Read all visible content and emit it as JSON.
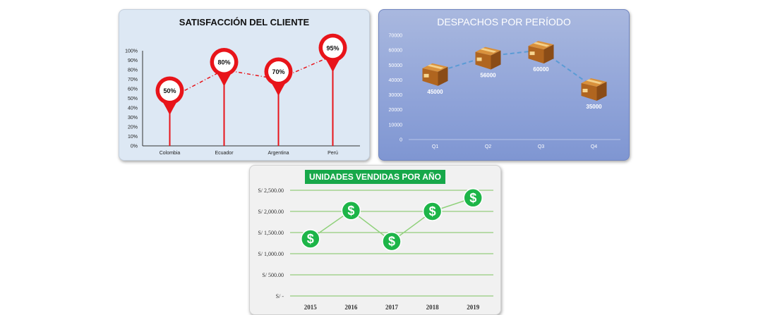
{
  "charts": {
    "satisfaction": {
      "title": "SATISFACCIÓN DEL CLIENTE"
    },
    "shipments": {
      "title": "DESPACHOS POR PERÍODO"
    },
    "units": {
      "title": "UNIDADES VENDIDAS POR AÑO"
    }
  },
  "chart_data": [
    {
      "type": "line",
      "title": "SATISFACCIÓN DEL CLIENTE",
      "categories": [
        "Colombia",
        "Ecuador",
        "Argentina",
        "Perú"
      ],
      "values": [
        50,
        80,
        70,
        95
      ],
      "value_labels": [
        "50%",
        "80%",
        "70%",
        "95%"
      ],
      "yticks": [
        "0%",
        "10%",
        "20%",
        "30%",
        "40%",
        "50%",
        "60%",
        "70%",
        "80%",
        "90%",
        "100%"
      ],
      "ylim": [
        0,
        100
      ],
      "color": "#e8141a",
      "marker": "map-pin"
    },
    {
      "type": "line",
      "title": "DESPACHOS POR PERÍODO",
      "categories": [
        "Q1",
        "Q2",
        "Q3",
        "Q4"
      ],
      "values": [
        45000,
        56000,
        60000,
        35000
      ],
      "value_labels": [
        "45000",
        "56000",
        "60000",
        "35000"
      ],
      "yticks": [
        "0",
        "10000",
        "20000",
        "30000",
        "40000",
        "50000",
        "60000",
        "70000"
      ],
      "ylim": [
        0,
        70000
      ],
      "color": "#5b9bd5",
      "marker": "box-icon"
    },
    {
      "type": "line",
      "title": "UNIDADES VENDIDAS POR AÑO",
      "categories": [
        "2015",
        "2016",
        "2017",
        "2018",
        "2019"
      ],
      "values": [
        1350,
        2020,
        1290,
        2000,
        2320
      ],
      "yticks": [
        "S/ -",
        "S/ 500.00",
        "S/ 1,000.00",
        "S/ 1,500.00",
        "S/ 2,000.00",
        "S/ 2,500.00"
      ],
      "ylim": [
        0,
        2500
      ],
      "grid": true,
      "color": "#8fd17a",
      "marker": "dollar-coin-icon"
    }
  ]
}
